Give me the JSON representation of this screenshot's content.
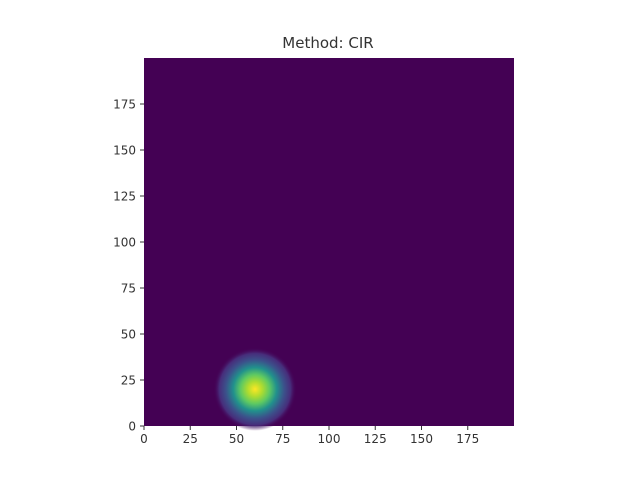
{
  "chart_data": {
    "type": "heatmap",
    "title": "Method: CIR",
    "xlabel": "",
    "ylabel": "",
    "xlim": [
      0,
      200
    ],
    "ylim": [
      0,
      200
    ],
    "x_ticks": [
      0,
      25,
      50,
      75,
      100,
      125,
      150,
      175
    ],
    "y_ticks": [
      0,
      25,
      50,
      75,
      100,
      125,
      150,
      175
    ],
    "x_tick_labels": [
      "0",
      "25",
      "50",
      "75",
      "100",
      "125",
      "150",
      "175"
    ],
    "y_tick_labels": [
      "0",
      "25",
      "50",
      "75",
      "100",
      "125",
      "150",
      "175"
    ],
    "colormap": "viridis",
    "background_value": 0,
    "peak": {
      "x": 60,
      "y": 20,
      "value": 1.0,
      "sigma": 5
    },
    "grid": false,
    "colors": {
      "low": "#440154",
      "mid_low": "#3b528b",
      "mid": "#21918c",
      "mid_high": "#5ec962",
      "high": "#fde725"
    }
  }
}
